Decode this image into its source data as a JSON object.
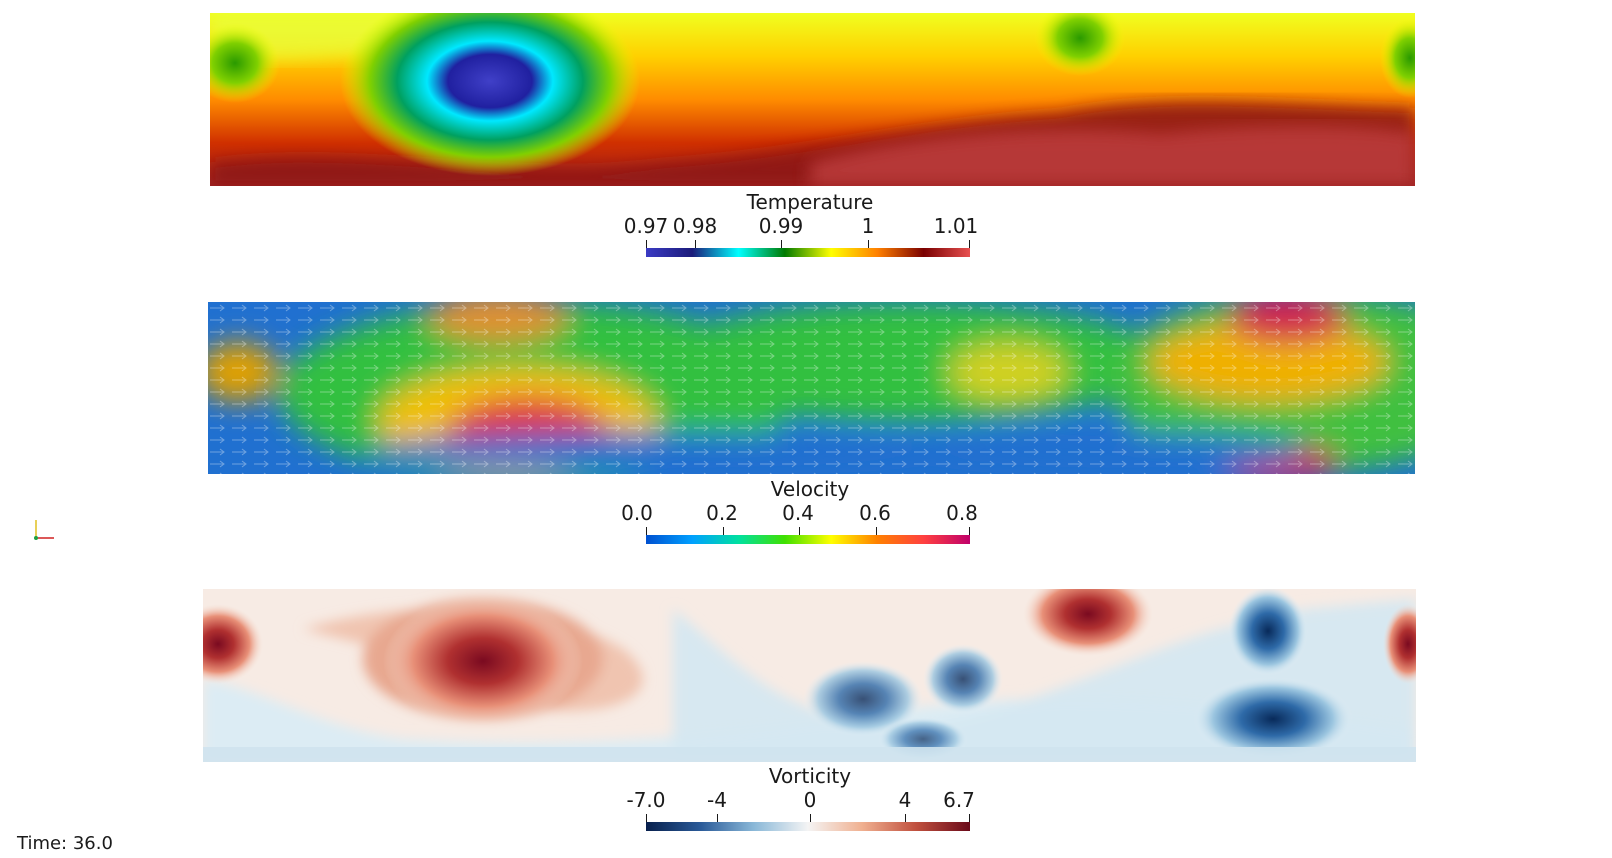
{
  "panels": [
    {
      "id": "temperature",
      "title": "Temperature",
      "ticks": [
        {
          "value": 0.97,
          "label": "0.97"
        },
        {
          "value": 0.98,
          "label": "0.98"
        },
        {
          "value": 0.99,
          "label": "0.99"
        },
        {
          "value": 1.0,
          "label": "1"
        },
        {
          "value": 1.01,
          "label": "1.01"
        }
      ],
      "range": [
        0.97,
        1.01
      ],
      "colormap": [
        "#3b3bc4",
        "#1b1b7a",
        "#00ffff",
        "#007a00",
        "#ffff00",
        "#ff8000",
        "#7a0000",
        "#e85050"
      ]
    },
    {
      "id": "velocity",
      "title": "Velocity",
      "ticks": [
        {
          "value": 0.0,
          "label": "0.0"
        },
        {
          "value": 0.2,
          "label": "0.2"
        },
        {
          "value": 0.4,
          "label": "0.4"
        },
        {
          "value": 0.6,
          "label": "0.6"
        },
        {
          "value": 0.8,
          "label": "0.8"
        }
      ],
      "range": [
        0.0,
        0.8
      ],
      "colormap": [
        "#0050d0",
        "#00a0ff",
        "#00e0a0",
        "#40e000",
        "#ffff00",
        "#ff8000",
        "#ff4040",
        "#c0006a"
      ]
    },
    {
      "id": "vorticity",
      "title": "Vorticity",
      "ticks": [
        {
          "value": -7.0,
          "label": "-7.0"
        },
        {
          "value": -4,
          "label": "-4"
        },
        {
          "value": 0,
          "label": "0"
        },
        {
          "value": 4,
          "label": "4"
        },
        {
          "value": 6.7,
          "label": "6.7"
        }
      ],
      "range": [
        -7.0,
        6.7
      ],
      "colormap": [
        "#08204d",
        "#2a5a98",
        "#8ab8d8",
        "#f4f4f4",
        "#f0b090",
        "#c0503e",
        "#6a0a1a"
      ]
    }
  ],
  "time_label": "Time: 36.0"
}
